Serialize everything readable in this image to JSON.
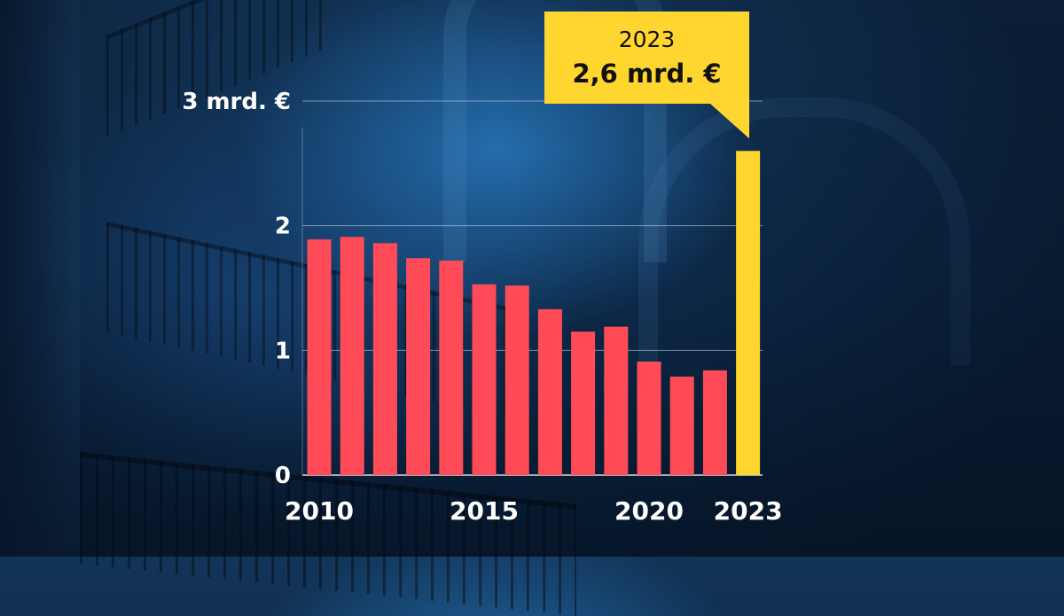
{
  "chart_data": {
    "type": "bar",
    "title": "",
    "xlabel": "",
    "ylabel": "",
    "x": [
      2010,
      2011,
      2012,
      2013,
      2014,
      2015,
      2016,
      2017,
      2018,
      2019,
      2020,
      2021,
      2022,
      2023
    ],
    "values": [
      1.89,
      1.91,
      1.86,
      1.74,
      1.72,
      1.53,
      1.52,
      1.33,
      1.15,
      1.19,
      0.91,
      0.79,
      0.84,
      2.6
    ],
    "ylim": [
      0,
      3
    ],
    "y_ticks": [
      0,
      1,
      2,
      3
    ],
    "y_tick_labels": [
      "0",
      "1",
      "2",
      "3 mrd. €"
    ],
    "x_tick_labels": [
      {
        "year": 2010,
        "label": "2010"
      },
      {
        "year": 2015,
        "label": "2015"
      },
      {
        "year": 2020,
        "label": "2020"
      },
      {
        "year": 2023,
        "label": "2023"
      }
    ],
    "grid": true,
    "bar_color": "#ff4b58",
    "highlight_color": "#ffd530",
    "highlight_year": 2023,
    "annotation": {
      "year_text": "2023",
      "value_text": "2,6 mrd. €"
    }
  }
}
